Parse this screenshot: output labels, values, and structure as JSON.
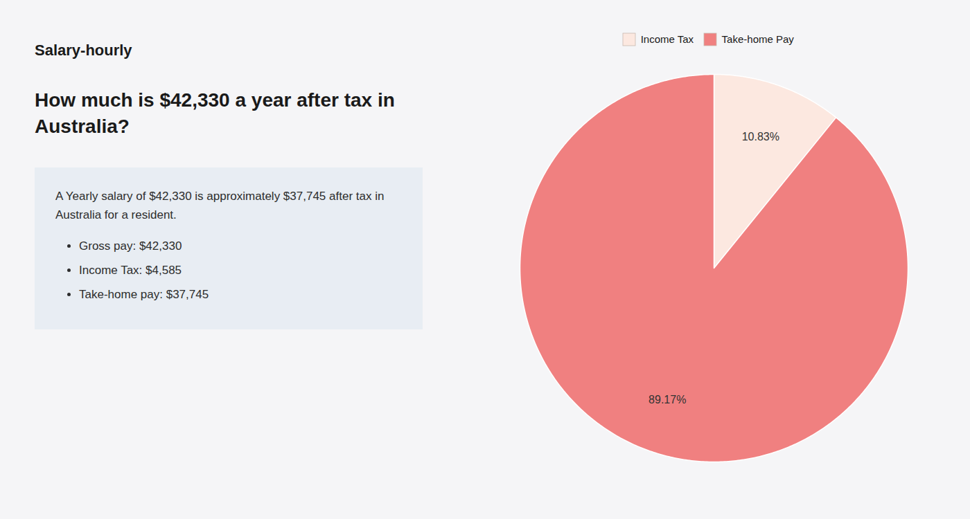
{
  "chart_data": {
    "type": "pie",
    "title": "How much is $42,330 a year after tax in Australia?",
    "annotations": [
      "Salary-hourly",
      "A Yearly salary of $42,330 is approximately $37,745 after tax in Australia for a resident.",
      "Gross pay: $42,330",
      "Income Tax: $4,585",
      "Take-home pay: $37,745"
    ],
    "categories": [
      "Income Tax",
      "Take-home Pay"
    ],
    "values": [
      10.83,
      89.17
    ],
    "value_labels": [
      "10.83%",
      "89.17%"
    ],
    "colors": [
      "#fce8e0",
      "#f08080"
    ],
    "data_labels": true,
    "legend": "top"
  }
}
